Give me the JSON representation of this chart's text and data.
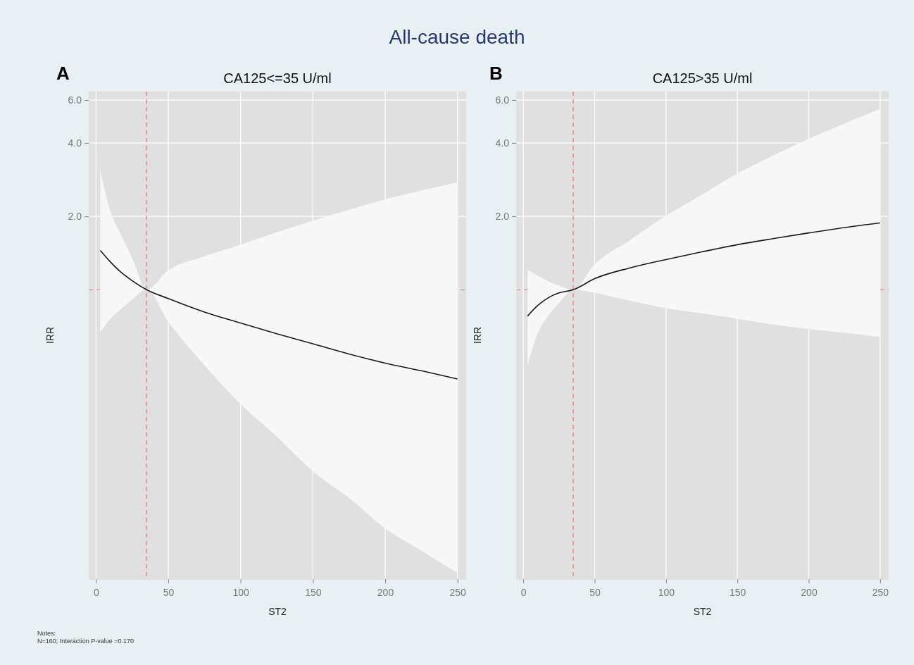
{
  "chart_data": [
    {
      "type": "line",
      "title": "CA125<=35 U/ml",
      "xlabel": "ST2",
      "ylabel": "IRR",
      "annotations": [
        "All-cause death",
        "A",
        "Notes:",
        "N=160; Interaction P-value =0.170"
      ],
      "log": "y",
      "grid": true,
      "marker": "none",
      "line_style": "solid",
      "xlim": [
        -5,
        256
      ],
      "xticks": [
        0,
        50,
        100,
        150,
        200,
        250
      ],
      "ylim": [
        0.065,
        6.5
      ],
      "yticks": [
        {
          "value": 2,
          "label": "2.0"
        },
        {
          "value": 4,
          "label": "4.0"
        },
        {
          "value": 6,
          "label": "6.0"
        }
      ],
      "ref_lines": [
        {
          "axis": "x",
          "value": 35,
          "color": "#e8776a",
          "line_style": "dashed"
        },
        {
          "axis": "y",
          "value": 1,
          "color": "#e8776a",
          "line_style": "dashed"
        }
      ],
      "series": [
        {
          "color": "#1a1a1a",
          "x": [
            3,
            10,
            18,
            25,
            35,
            50,
            75,
            100,
            125,
            150,
            175,
            200,
            225,
            250
          ],
          "values": [
            1.45,
            1.3,
            1.17,
            1.09,
            1.0,
            0.92,
            0.81,
            0.73,
            0.66,
            0.6,
            0.545,
            0.5,
            0.465,
            0.43
          ],
          "lower": [
            0.67,
            0.76,
            0.84,
            0.91,
            1.0,
            0.74,
            0.49,
            0.34,
            0.25,
            0.18,
            0.14,
            0.105,
            0.085,
            0.069
          ],
          "upper": [
            3.09,
            2.1,
            1.65,
            1.35,
            1.0,
            1.2,
            1.37,
            1.53,
            1.72,
            1.92,
            2.13,
            2.35,
            2.55,
            2.76
          ]
        }
      ]
    },
    {
      "type": "line",
      "title": "CA125>35 U/ml",
      "xlabel": "ST2",
      "ylabel": "IRR",
      "annotations": [
        "B"
      ],
      "log": "y",
      "grid": true,
      "marker": "none",
      "line_style": "solid",
      "xlim": [
        -5,
        256
      ],
      "xticks": [
        0,
        50,
        100,
        150,
        200,
        250
      ],
      "ylim": [
        0.065,
        6.5
      ],
      "yticks": [
        {
          "value": 2,
          "label": "2.0"
        },
        {
          "value": 4,
          "label": "4.0"
        },
        {
          "value": 6,
          "label": "6.0"
        }
      ],
      "ref_lines": [
        {
          "axis": "x",
          "value": 35,
          "color": "#e8776a",
          "line_style": "dashed"
        },
        {
          "axis": "y",
          "value": 1,
          "color": "#e8776a",
          "line_style": "dashed"
        }
      ],
      "series": [
        {
          "color": "#1a1a1a",
          "x": [
            3,
            10,
            18,
            25,
            35,
            50,
            75,
            100,
            125,
            150,
            175,
            200,
            225,
            250
          ],
          "values": [
            0.78,
            0.86,
            0.93,
            0.97,
            1.0,
            1.11,
            1.23,
            1.33,
            1.43,
            1.53,
            1.62,
            1.71,
            1.8,
            1.88
          ],
          "lower": [
            0.49,
            0.66,
            0.79,
            0.88,
            1.0,
            0.97,
            0.9,
            0.84,
            0.8,
            0.76,
            0.72,
            0.69,
            0.665,
            0.64
          ],
          "upper": [
            1.21,
            1.14,
            1.08,
            1.04,
            1.0,
            1.27,
            1.6,
            2.01,
            2.45,
            3.0,
            3.55,
            4.16,
            4.8,
            5.52
          ]
        }
      ]
    }
  ]
}
